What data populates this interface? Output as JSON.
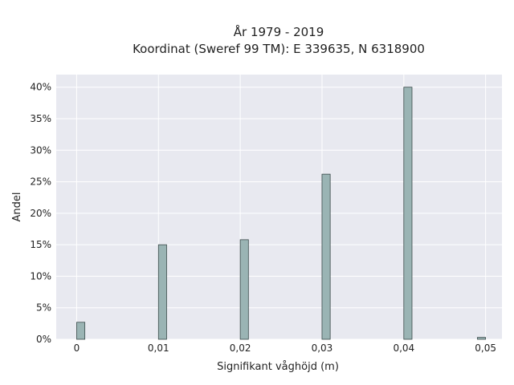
{
  "chart_data": {
    "type": "bar",
    "title": "År 1979 - 2019",
    "subtitle": "Koordinat (Sweref 99 TM): E 339635, N 6318900",
    "xlabel": "Signifikant våghöjd (m)",
    "ylabel": "Andel",
    "x_ticks": [
      "0",
      "0,01",
      "0,02",
      "0,03",
      "0,04",
      "0,05"
    ],
    "x_tick_values": [
      0,
      0.01,
      0.02,
      0.03,
      0.04,
      0.05
    ],
    "y_ticks": [
      "0%",
      "5%",
      "10%",
      "15%",
      "20%",
      "25%",
      "30%",
      "35%",
      "40%"
    ],
    "y_tick_values": [
      0,
      5,
      10,
      15,
      20,
      25,
      30,
      35,
      40
    ],
    "xlim": [
      -0.0025,
      0.052
    ],
    "ylim": [
      0,
      42
    ],
    "x": [
      0.0005,
      0.0105,
      0.0205,
      0.0305,
      0.0405,
      0.0495
    ],
    "values": [
      2.7,
      15.0,
      15.8,
      26.2,
      40.0,
      0.3
    ],
    "bar_width": 0.001,
    "grid": true,
    "colors": {
      "bar_fill": "#9ab4b4",
      "bar_stroke": "#3a4a4a",
      "plot_bg": "#e8e9f0",
      "grid": "#ffffff"
    }
  }
}
